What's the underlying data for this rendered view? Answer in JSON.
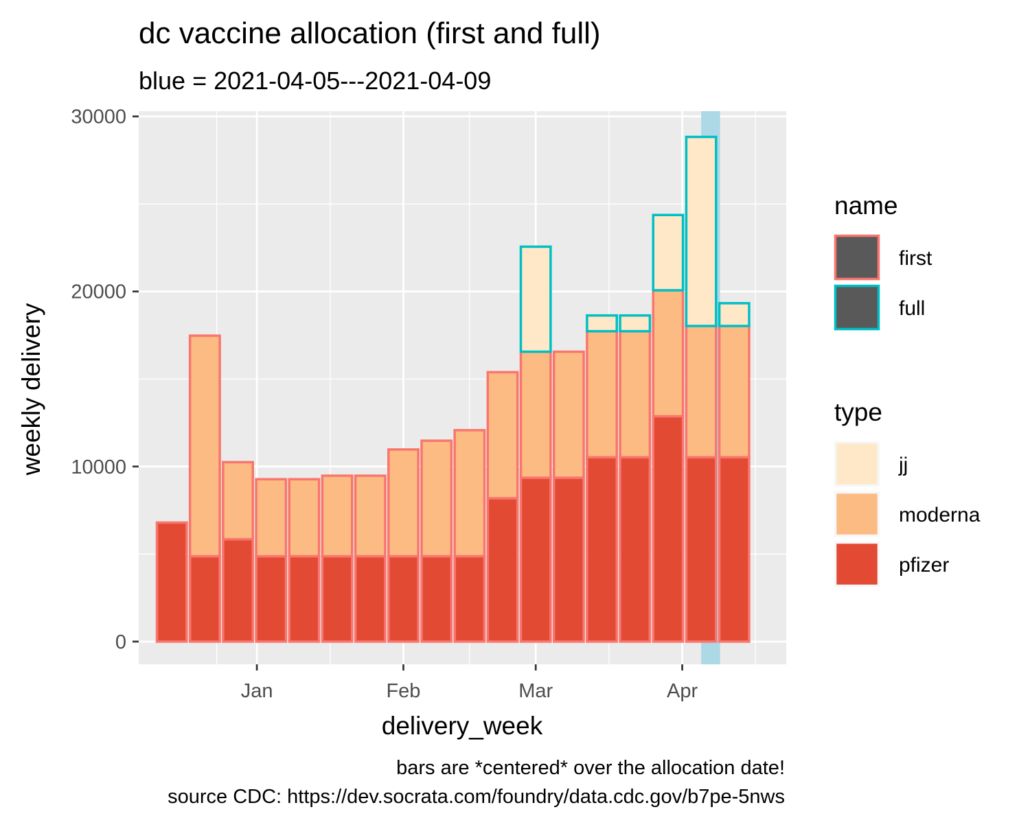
{
  "chart_data": {
    "type": "bar",
    "title": "dc vaccine allocation (first and full)",
    "subtitle": "blue = 2021-04-05---2021-04-09",
    "xlabel": "delivery_week",
    "ylabel": "weekly delivery",
    "caption_lines": [
      "bars are *centered* over the allocation date!",
      "source CDC: https://dev.socrata.com/foundry/data.cdc.gov/b7pe-5nws"
    ],
    "x_ticks": [
      {
        "label": "Jan",
        "date": "2021-01-01"
      },
      {
        "label": "Feb",
        "date": "2021-02-01"
      },
      {
        "label": "Mar",
        "date": "2021-03-01"
      },
      {
        "label": "Apr",
        "date": "2021-04-01"
      }
    ],
    "x_range": [
      "2020-12-07",
      "2021-04-23"
    ],
    "ylim": [
      -1300,
      30300
    ],
    "y_ticks": [
      0,
      10000,
      20000,
      30000
    ],
    "highlight": {
      "start": "2021-04-05",
      "end": "2021-04-09",
      "color": "#add8e6"
    },
    "bar_width_days": 6.3,
    "weeks": [
      {
        "week": "2020-12-14",
        "first": {
          "pfizer": 6800,
          "moderna": 0,
          "jj": 0
        },
        "full": null
      },
      {
        "week": "2020-12-21",
        "first": {
          "pfizer": 4875,
          "moderna": 12600,
          "jj": 0
        },
        "full": null
      },
      {
        "week": "2020-12-28",
        "first": {
          "pfizer": 5850,
          "moderna": 4400,
          "jj": 0
        },
        "full": null
      },
      {
        "week": "2021-01-04",
        "first": {
          "pfizer": 4875,
          "moderna": 4400,
          "jj": 0
        },
        "full": null
      },
      {
        "week": "2021-01-11",
        "first": {
          "pfizer": 4875,
          "moderna": 4400,
          "jj": 0
        },
        "full": null
      },
      {
        "week": "2021-01-18",
        "first": {
          "pfizer": 4875,
          "moderna": 4600,
          "jj": 0
        },
        "full": null
      },
      {
        "week": "2021-01-25",
        "first": {
          "pfizer": 4875,
          "moderna": 4600,
          "jj": 0
        },
        "full": null
      },
      {
        "week": "2021-02-01",
        "first": {
          "pfizer": 4875,
          "moderna": 6100,
          "jj": 0
        },
        "full": null
      },
      {
        "week": "2021-02-08",
        "first": {
          "pfizer": 4875,
          "moderna": 6600,
          "jj": 0
        },
        "full": null
      },
      {
        "week": "2021-02-15",
        "first": {
          "pfizer": 4875,
          "moderna": 7200,
          "jj": 0
        },
        "full": null
      },
      {
        "week": "2021-02-22",
        "first": {
          "pfizer": 8190,
          "moderna": 7200,
          "jj": 0
        },
        "full": null
      },
      {
        "week": "2021-03-01",
        "first": {
          "pfizer": 9360,
          "moderna": 7200,
          "jj": 0
        },
        "full": {
          "jj": 6000
        }
      },
      {
        "week": "2021-03-08",
        "first": {
          "pfizer": 9360,
          "moderna": 7200,
          "jj": 0
        },
        "full": null
      },
      {
        "week": "2021-03-15",
        "first": {
          "pfizer": 10530,
          "moderna": 7200,
          "jj": 0
        },
        "full": {
          "jj": 900
        }
      },
      {
        "week": "2021-03-22",
        "first": {
          "pfizer": 10530,
          "moderna": 7200,
          "jj": 0
        },
        "full": {
          "jj": 900
        }
      },
      {
        "week": "2021-03-29",
        "first": {
          "pfizer": 12870,
          "moderna": 7200,
          "jj": 0
        },
        "full": {
          "jj": 4300
        }
      },
      {
        "week": "2021-04-05",
        "first": {
          "pfizer": 10530,
          "moderna": 7500,
          "jj": 0
        },
        "full": {
          "jj": 10800
        }
      },
      {
        "week": "2021-04-12",
        "first": {
          "pfizer": 10530,
          "moderna": 7500,
          "jj": 0
        },
        "full": {
          "jj": 1300
        }
      }
    ],
    "colors": {
      "pfizer": "#e34a33",
      "moderna": "#fdbb84",
      "jj": "#fee8c8",
      "first_outline": "#f8766d",
      "full_outline": "#00bfc4",
      "panel": "#ebebeb",
      "grid": "#ffffff"
    },
    "legends": [
      {
        "title": "name",
        "entries": [
          {
            "label": "first",
            "fill": "#595959",
            "outline": "#f8766d"
          },
          {
            "label": "full",
            "fill": "#595959",
            "outline": "#00bfc4"
          }
        ]
      },
      {
        "title": "type",
        "entries": [
          {
            "label": "jj",
            "fill": "#fee8c8",
            "outline": "#f7f7f7"
          },
          {
            "label": "moderna",
            "fill": "#fdbb84",
            "outline": "#f7f7f7"
          },
          {
            "label": "pfizer",
            "fill": "#e34a33",
            "outline": "#f7f7f7"
          }
        ]
      }
    ],
    "legend_position": "right",
    "grid": true
  }
}
